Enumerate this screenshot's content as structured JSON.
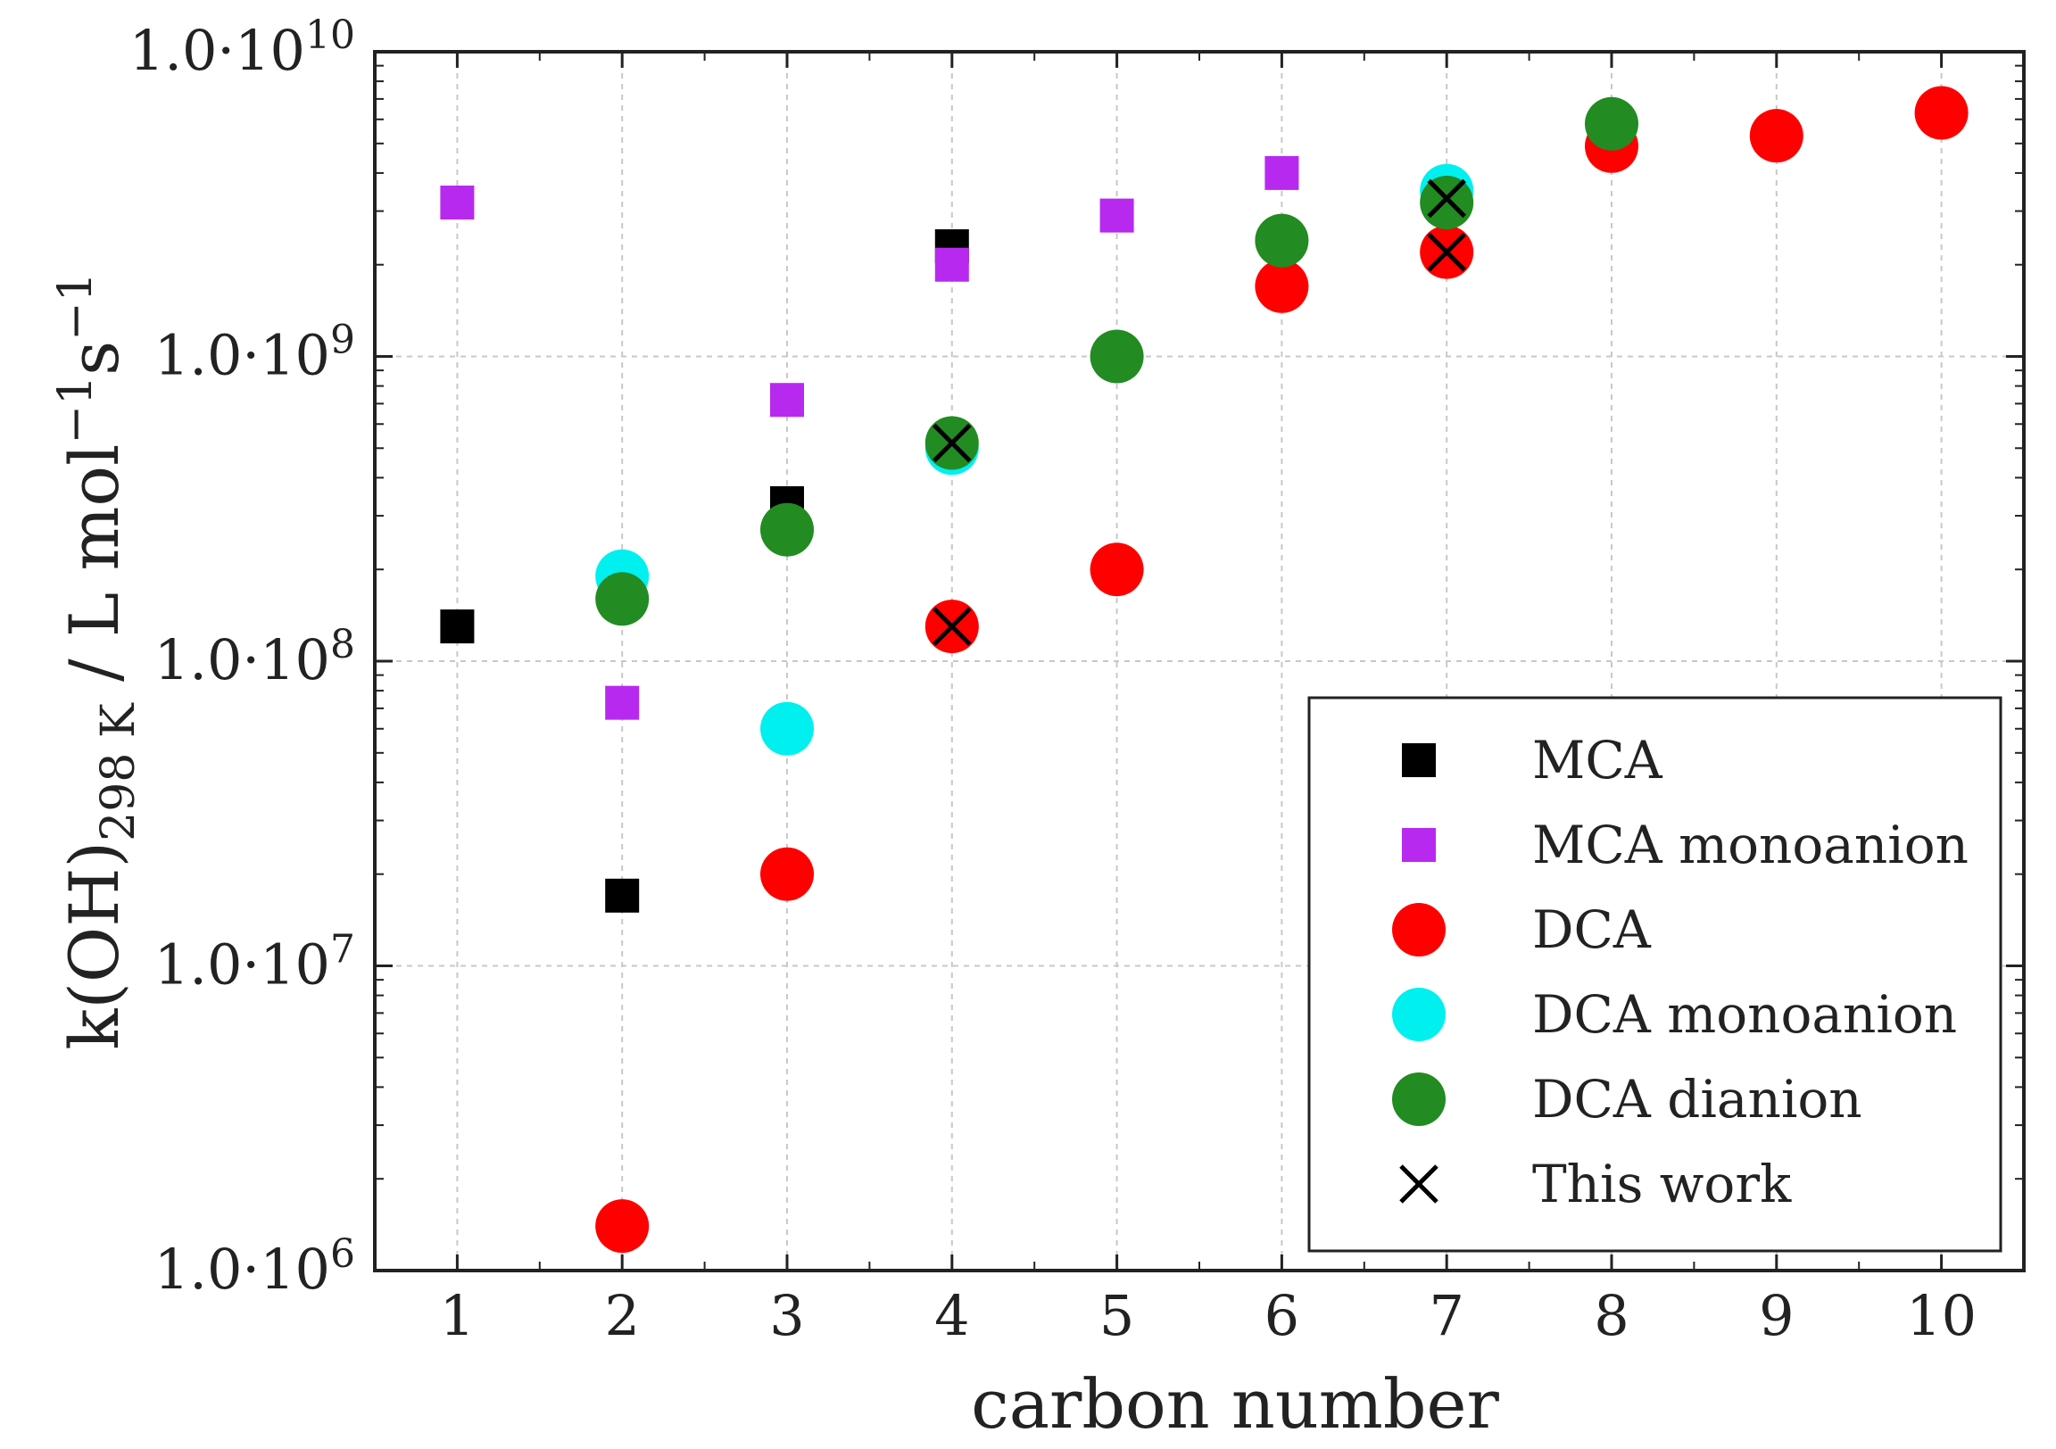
{
  "chart_data": {
    "type": "scatter",
    "xlabel": "carbon number",
    "ylabel": {
      "main": "k(OH)",
      "sub": "298 K",
      "unit": " / L mol",
      "unit_exp1": "−1",
      "unit_s": "s",
      "unit_exp2": "−1"
    },
    "xlim": [
      0.5,
      10.5
    ],
    "ylim": [
      1000000,
      10000000000
    ],
    "yscale": "log",
    "grid": true,
    "legend_position": "bottom-right",
    "x_ticks": [
      1,
      2,
      3,
      4,
      5,
      6,
      7,
      8,
      9,
      10
    ],
    "x_tick_labels": [
      "1",
      "2",
      "3",
      "4",
      "5",
      "6",
      "7",
      "8",
      "9",
      "10"
    ],
    "y_ticks": [
      {
        "value": 1000000,
        "mantissa": "1.0·10",
        "exp": "6"
      },
      {
        "value": 10000000,
        "mantissa": "1.0·10",
        "exp": "7"
      },
      {
        "value": 100000000,
        "mantissa": "1.0·10",
        "exp": "8"
      },
      {
        "value": 1000000000,
        "mantissa": "1.0·10",
        "exp": "9"
      },
      {
        "value": 10000000000,
        "mantissa": "1.0·10",
        "exp": "10"
      }
    ],
    "series": [
      {
        "name": "MCA",
        "marker": "square",
        "color": "#000000",
        "x": [
          1,
          2,
          3,
          4
        ],
        "y": [
          130000000,
          17000000,
          330000000,
          2300000000
        ]
      },
      {
        "name": "MCA monoanion",
        "marker": "square",
        "color": "#b829f0",
        "x": [
          1,
          2,
          3,
          4,
          5,
          6
        ],
        "y": [
          3200000000,
          73000000,
          720000000,
          2000000000,
          2900000000,
          4000000000
        ]
      },
      {
        "name": "DCA",
        "marker": "circle",
        "color": "#ff0000",
        "x": [
          2,
          3,
          4,
          5,
          6,
          7,
          8,
          9,
          10
        ],
        "y": [
          1400000,
          20000000,
          130000000,
          200000000,
          1700000000,
          2200000000,
          4900000000,
          5300000000,
          6300000000
        ]
      },
      {
        "name": "DCA monoanion",
        "marker": "circle",
        "color": "#00f0f0",
        "x": [
          2,
          3,
          4,
          7
        ],
        "y": [
          190000000,
          60000000,
          500000000,
          3500000000
        ]
      },
      {
        "name": "DCA dianion",
        "marker": "circle",
        "color": "#228b22",
        "x": [
          2,
          3,
          4,
          5,
          6,
          7,
          8
        ],
        "y": [
          160000000,
          270000000,
          520000000,
          1000000000,
          2400000000,
          3200000000,
          5800000000
        ]
      },
      {
        "name": "This work",
        "marker": "x",
        "color": "#000000",
        "x": [
          4,
          4,
          7,
          7
        ],
        "y": [
          520000000,
          130000000,
          3300000000,
          2200000000
        ]
      }
    ]
  }
}
